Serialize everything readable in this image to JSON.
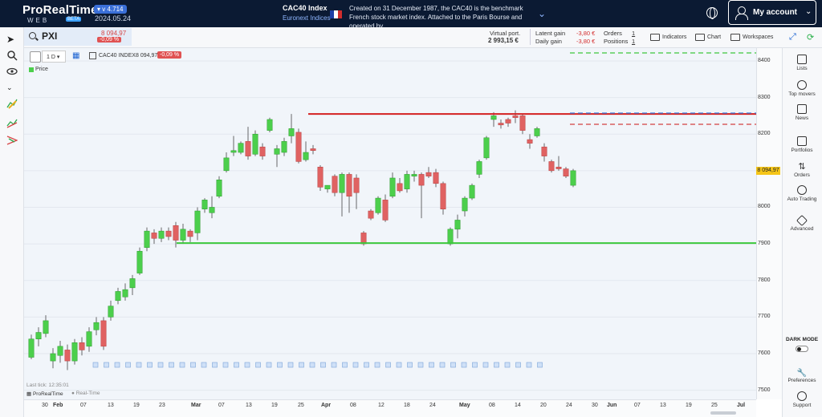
{
  "app": {
    "name": "ProRealTime",
    "sub": "WEB",
    "beta": "BETA",
    "version": "v 4.714",
    "date": "2024.05.24"
  },
  "instrument": {
    "name": "CAC40 Index",
    "exchange": "Euronext Indices",
    "description": "Created on 31 December 1987, the CAC40 is the benchmark French stock market index. Attached to the Paris Bourse and operated by..."
  },
  "account": {
    "label": "My account"
  },
  "search": {
    "ticker": "PXI",
    "price": "8 094,97",
    "change": "-0,09 %"
  },
  "portfolio": {
    "virtual_label": "Virtual port.",
    "virtual_value": "2 993,15 €",
    "latent_label": "Latent gain",
    "latent_value": "-3,80 €",
    "daily_label": "Daily gain",
    "daily_value": "-3,80 €",
    "orders_label": "Orders",
    "orders_value": "1",
    "positions_label": "Positions",
    "positions_value": "1"
  },
  "toolbar": {
    "indicators": "Indicators",
    "chart": "Chart",
    "workspaces": "Workspaces"
  },
  "chart_header": {
    "timeframe": "1 D",
    "instrument": "CAC40 INDEX",
    "price": "8 094,97",
    "change": "-0,09 %",
    "legend": "Price"
  },
  "footer": {
    "last_tick": "Last tick: 12:35:01",
    "brand": "ProRealTime",
    "realtime": "Real-Time"
  },
  "right_sidebar": [
    "Lists",
    "Top movers",
    "News",
    "Portfolios",
    "Orders",
    "Auto Trading",
    "Advanced",
    "Preferences",
    "Support"
  ],
  "dark_mode": "DARK MODE",
  "current_price_label": "8 094,97",
  "colors": {
    "up": "#4ccf4c",
    "down": "#e06262",
    "resistance": "#d42020",
    "support": "#3cc83c",
    "brand": "#0b1a33"
  },
  "chart_data": {
    "type": "candlestick",
    "y_axis_labels": [
      "8400",
      "8300",
      "8200",
      "8100",
      "8000",
      "7900",
      "7800",
      "7700",
      "7600",
      "7500"
    ],
    "ylim": [
      7475,
      8435
    ],
    "x_axis_labels": [
      "30",
      "Feb",
      "07",
      "13",
      "19",
      "23",
      "Mar",
      "07",
      "13",
      "19",
      "25",
      "Apr",
      "08",
      "12",
      "18",
      "24",
      "May",
      "08",
      "14",
      "20",
      "24",
      "30",
      "Jun",
      "07",
      "13",
      "19",
      "25",
      "Jul"
    ],
    "resistance_level": 8255,
    "support_level": 7902,
    "candles": [
      [
        7590,
        7640,
        7585,
        7652
      ],
      [
        7640,
        7658,
        7620,
        7672
      ],
      [
        7655,
        7690,
        7645,
        7705
      ],
      [
        7580,
        7600,
        7560,
        7615
      ],
      [
        7595,
        7620,
        7575,
        7635
      ],
      [
        7610,
        7580,
        7555,
        7625
      ],
      [
        7580,
        7630,
        7570,
        7640
      ],
      [
        7630,
        7610,
        7595,
        7645
      ],
      [
        7620,
        7660,
        7605,
        7672
      ],
      [
        7665,
        7685,
        7650,
        7700
      ],
      [
        7690,
        7620,
        7610,
        7700
      ],
      [
        7700,
        7730,
        7690,
        7745
      ],
      [
        7745,
        7770,
        7735,
        7780
      ],
      [
        7755,
        7775,
        7745,
        7792
      ],
      [
        7780,
        7805,
        7760,
        7815
      ],
      [
        7820,
        7880,
        7815,
        7890
      ],
      [
        7890,
        7935,
        7880,
        7945
      ],
      [
        7930,
        7915,
        7900,
        7940
      ],
      [
        7915,
        7935,
        7905,
        7945
      ],
      [
        7935,
        7920,
        7910,
        7945
      ],
      [
        7950,
        7910,
        7890,
        7960
      ],
      [
        7910,
        7940,
        7900,
        7955
      ],
      [
        7935,
        7920,
        7905,
        7940
      ],
      [
        7930,
        7990,
        7910,
        8000
      ],
      [
        7995,
        8020,
        7985,
        8025
      ],
      [
        7985,
        8000,
        7970,
        8030
      ],
      [
        8030,
        8075,
        8025,
        8085
      ],
      [
        8100,
        8135,
        8095,
        8150
      ],
      [
        8150,
        8155,
        8140,
        8195
      ],
      [
        8150,
        8175,
        8145,
        8180
      ],
      [
        8180,
        8140,
        8130,
        8220
      ],
      [
        8145,
        8200,
        8140,
        8210
      ],
      [
        8165,
        8140,
        8130,
        8175
      ],
      [
        8210,
        8240,
        8205,
        8245
      ],
      [
        8145,
        8160,
        8110,
        8170
      ],
      [
        8150,
        8180,
        8140,
        8190
      ],
      [
        8195,
        8215,
        8175,
        8255
      ],
      [
        8205,
        8125,
        8120,
        8215
      ],
      [
        8130,
        8150,
        8125,
        8180
      ],
      [
        8160,
        8155,
        8145,
        8170
      ],
      [
        8110,
        8055,
        8045,
        8115
      ],
      [
        8050,
        8060,
        8040,
        8060
      ],
      [
        8085,
        8040,
        8030,
        8090
      ],
      [
        8040,
        8090,
        7975,
        8095
      ],
      [
        8090,
        8030,
        7985,
        8095
      ],
      [
        8080,
        8040,
        7995,
        8090
      ],
      [
        7930,
        7900,
        7895,
        7935
      ],
      [
        7990,
        7970,
        7965,
        7995
      ],
      [
        7985,
        8025,
        7980,
        8030
      ],
      [
        8020,
        7965,
        7960,
        8035
      ],
      [
        8030,
        8080,
        8025,
        8095
      ],
      [
        8065,
        8045,
        8040,
        8080
      ],
      [
        8050,
        8090,
        8040,
        8100
      ],
      [
        8085,
        8090,
        8070,
        8100
      ],
      [
        8090,
        8060,
        7970,
        8095
      ],
      [
        8095,
        8085,
        8080,
        8110
      ],
      [
        8095,
        8065,
        8055,
        8105
      ],
      [
        8065,
        7995,
        7980,
        8070
      ],
      [
        7900,
        7940,
        7895,
        7945
      ],
      [
        7940,
        7965,
        7915,
        7980
      ],
      [
        7990,
        8025,
        7975,
        8030
      ],
      [
        8025,
        8060,
        8020,
        8065
      ],
      [
        8090,
        8125,
        8080,
        8130
      ],
      [
        8135,
        8190,
        8130,
        8195
      ],
      [
        8240,
        8250,
        8220,
        8260
      ],
      [
        8230,
        8225,
        8215,
        8240
      ],
      [
        8240,
        8230,
        8220,
        8245
      ],
      [
        8250,
        8245,
        8230,
        8265
      ],
      [
        8250,
        8210,
        8200,
        8255
      ],
      [
        8185,
        8175,
        8160,
        8200
      ],
      [
        8195,
        8215,
        8190,
        8220
      ],
      [
        8165,
        8140,
        8125,
        8175
      ],
      [
        8125,
        8100,
        8095,
        8130
      ],
      [
        8110,
        8105,
        8100,
        8140
      ],
      [
        8105,
        8085,
        8080,
        8110
      ],
      [
        8060,
        8100,
        8055,
        8105
      ]
    ]
  }
}
